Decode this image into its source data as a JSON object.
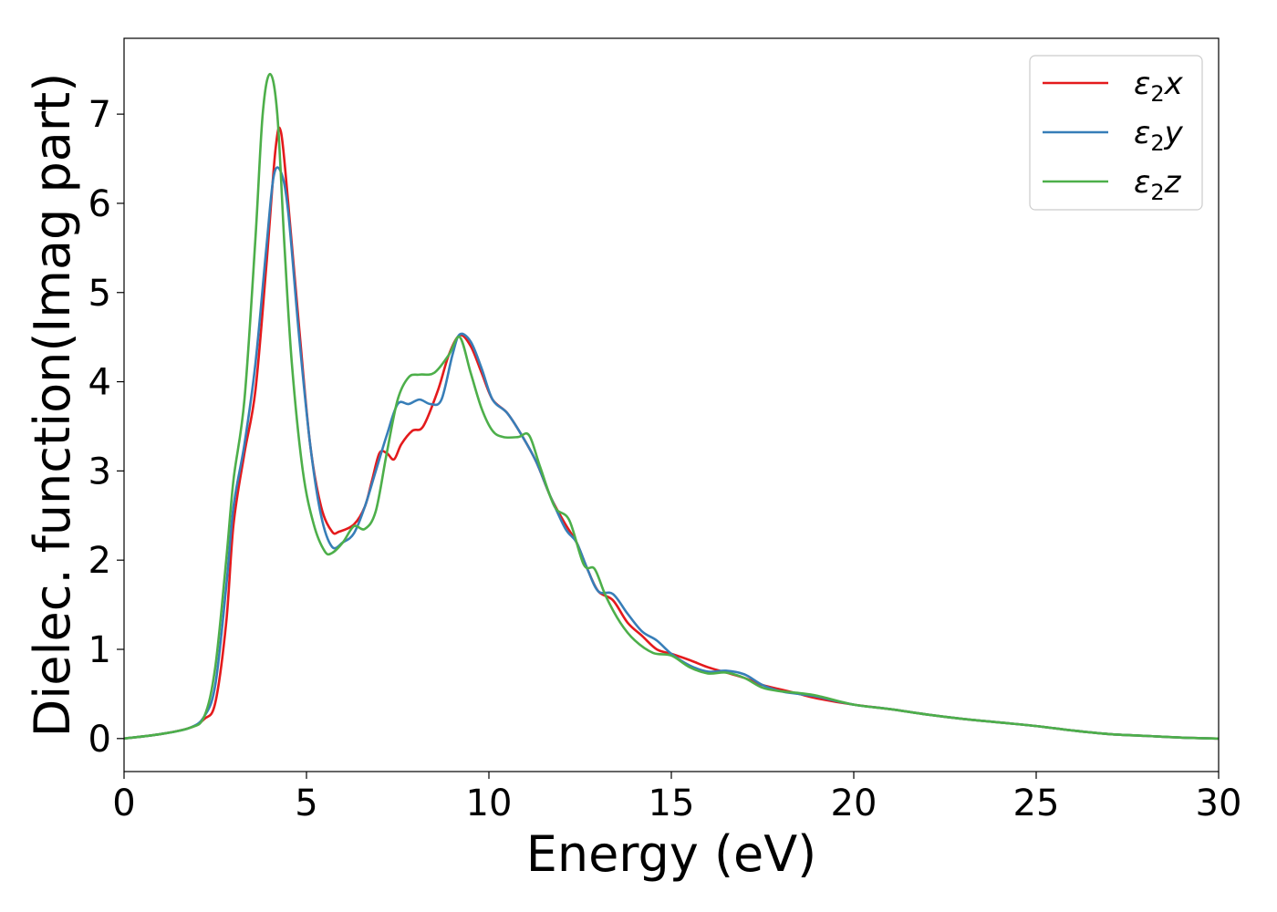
{
  "chart_data": {
    "type": "line",
    "title": "",
    "xlabel": "Energy (eV)",
    "ylabel": "Dielec. function(Imag part)",
    "xlim": [
      0,
      30
    ],
    "ylim": [
      -0.37,
      7.85
    ],
    "xticks": [
      0,
      5,
      10,
      15,
      20,
      25,
      30
    ],
    "yticks": [
      0,
      1,
      2,
      3,
      4,
      5,
      6,
      7
    ],
    "grid": false,
    "legend_position": "top-right",
    "series": [
      {
        "name": "ε₂x",
        "legend_base": "ε",
        "legend_sub": "2",
        "legend_suffix": "x",
        "color": "#e41a1c",
        "x": [
          0,
          1,
          1.8,
          2.2,
          2.5,
          2.8,
          3.0,
          3.3,
          3.6,
          3.9,
          4.15,
          4.3,
          4.5,
          4.8,
          5.1,
          5.4,
          5.7,
          5.9,
          6.3,
          6.6,
          6.8,
          7.0,
          7.2,
          7.4,
          7.6,
          7.9,
          8.2,
          8.6,
          8.9,
          9.2,
          9.5,
          9.8,
          10.1,
          10.5,
          10.9,
          11.3,
          11.7,
          12.1,
          12.4,
          12.7,
          13.0,
          13.4,
          13.8,
          14.2,
          14.6,
          15.0,
          15.5,
          16.0,
          16.5,
          17.0,
          17.5,
          18.0,
          18.5,
          19.0,
          20.0,
          21.0,
          22.0,
          23.0,
          24.0,
          25.0,
          26.0,
          27.0,
          28.0,
          29.0,
          30.0
        ],
        "y": [
          0.0,
          0.05,
          0.12,
          0.22,
          0.4,
          1.3,
          2.4,
          3.2,
          3.9,
          5.3,
          6.6,
          6.8,
          6.0,
          4.6,
          3.3,
          2.6,
          2.32,
          2.32,
          2.4,
          2.6,
          2.9,
          3.2,
          3.2,
          3.13,
          3.3,
          3.45,
          3.5,
          3.9,
          4.3,
          4.52,
          4.4,
          4.1,
          3.8,
          3.65,
          3.4,
          3.1,
          2.7,
          2.4,
          2.2,
          1.9,
          1.65,
          1.55,
          1.3,
          1.15,
          1.0,
          0.95,
          0.88,
          0.8,
          0.74,
          0.68,
          0.6,
          0.55,
          0.5,
          0.45,
          0.38,
          0.33,
          0.27,
          0.22,
          0.18,
          0.14,
          0.09,
          0.05,
          0.03,
          0.01,
          0.0
        ]
      },
      {
        "name": "ε₂y",
        "legend_base": "ε",
        "legend_sub": "2",
        "legend_suffix": "y",
        "color": "#377eb8",
        "x": [
          0,
          1,
          1.8,
          2.2,
          2.5,
          2.8,
          3.0,
          3.3,
          3.6,
          3.9,
          4.1,
          4.3,
          4.5,
          4.8,
          5.1,
          5.4,
          5.7,
          6.0,
          6.3,
          6.6,
          6.9,
          7.2,
          7.5,
          7.8,
          8.1,
          8.4,
          8.7,
          9.0,
          9.2,
          9.5,
          9.8,
          10.1,
          10.5,
          10.9,
          11.3,
          11.7,
          12.1,
          12.4,
          12.7,
          13.0,
          13.4,
          13.8,
          14.2,
          14.6,
          15.0,
          15.5,
          16.0,
          16.5,
          17.0,
          17.5,
          18.0,
          18.5,
          19.0,
          20.0,
          21.0,
          22.0,
          23.0,
          24.0,
          25.0,
          26.0,
          27.0,
          28.0,
          29.0,
          30.0
        ],
        "y": [
          0.0,
          0.05,
          0.12,
          0.25,
          0.6,
          1.7,
          2.6,
          3.3,
          4.2,
          5.5,
          6.3,
          6.35,
          5.9,
          4.5,
          3.3,
          2.5,
          2.15,
          2.2,
          2.3,
          2.6,
          3.0,
          3.4,
          3.75,
          3.75,
          3.8,
          3.75,
          3.8,
          4.3,
          4.53,
          4.45,
          4.15,
          3.8,
          3.65,
          3.4,
          3.1,
          2.7,
          2.35,
          2.2,
          1.9,
          1.65,
          1.62,
          1.4,
          1.2,
          1.1,
          0.95,
          0.82,
          0.75,
          0.76,
          0.72,
          0.6,
          0.53,
          0.5,
          0.47,
          0.38,
          0.33,
          0.27,
          0.22,
          0.18,
          0.14,
          0.09,
          0.05,
          0.03,
          0.01,
          0.0
        ]
      },
      {
        "name": "ε₂z",
        "legend_base": "ε",
        "legend_sub": "2",
        "legend_suffix": "z",
        "color": "#4daf4a",
        "x": [
          0,
          1,
          1.8,
          2.2,
          2.5,
          2.8,
          3.0,
          3.3,
          3.6,
          3.8,
          4.0,
          4.2,
          4.4,
          4.6,
          4.9,
          5.2,
          5.5,
          5.7,
          6.0,
          6.3,
          6.6,
          6.9,
          7.2,
          7.5,
          7.8,
          8.1,
          8.5,
          8.9,
          9.2,
          9.5,
          9.8,
          10.1,
          10.4,
          10.8,
          11.1,
          11.4,
          11.8,
          12.2,
          12.6,
          12.9,
          13.2,
          13.6,
          14.0,
          14.5,
          15.0,
          15.5,
          16.0,
          16.5,
          17.0,
          17.5,
          18.0,
          18.5,
          19.0,
          20.0,
          21.0,
          22.0,
          23.0,
          24.0,
          25.0,
          26.0,
          27.0,
          28.0,
          29.0,
          30.0
        ],
        "y": [
          0.0,
          0.05,
          0.12,
          0.25,
          0.8,
          2.0,
          2.9,
          3.8,
          5.6,
          7.0,
          7.45,
          7.0,
          5.5,
          4.2,
          3.0,
          2.4,
          2.1,
          2.08,
          2.2,
          2.38,
          2.35,
          2.55,
          3.2,
          3.8,
          4.05,
          4.08,
          4.1,
          4.3,
          4.5,
          4.1,
          3.7,
          3.45,
          3.38,
          3.38,
          3.4,
          3.05,
          2.6,
          2.45,
          1.95,
          1.9,
          1.6,
          1.3,
          1.1,
          0.96,
          0.93,
          0.8,
          0.73,
          0.74,
          0.68,
          0.57,
          0.53,
          0.51,
          0.48,
          0.38,
          0.33,
          0.27,
          0.22,
          0.18,
          0.14,
          0.09,
          0.05,
          0.03,
          0.01,
          0.0
        ]
      }
    ]
  }
}
